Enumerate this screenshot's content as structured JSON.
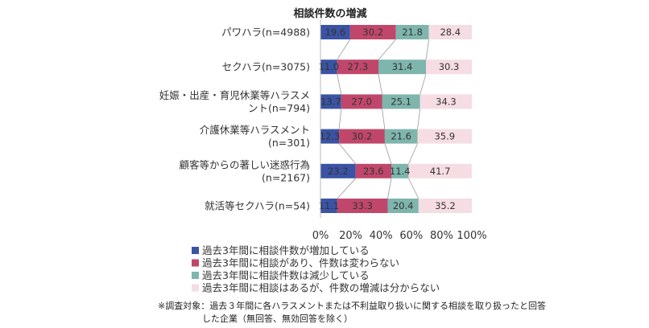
{
  "chart_data": {
    "type": "bar",
    "orientation": "horizontal-stacked-100",
    "title": "相談件数の増減",
    "categories": [
      [
        "パワハラ(n=4988)"
      ],
      [
        "セクハラ(n=3075)"
      ],
      [
        "妊娠・出産・育児休業等ハラスメ",
        "ント(n=794)"
      ],
      [
        "介護休業等ハラスメント",
        "(n=301)"
      ],
      [
        "顧客等からの著しい迷惑行為",
        "(n=2167)"
      ],
      [
        "就活等セクハラ(n=54)"
      ]
    ],
    "series": [
      {
        "name": "過去3年間に相談件数が増加している",
        "color": "#3a53a4",
        "values": [
          19.6,
          11.0,
          13.7,
          12.3,
          23.2,
          11.1
        ]
      },
      {
        "name": "過去3年間に相談があり、件数は変わらない",
        "color": "#c0476b",
        "values": [
          30.2,
          27.3,
          27.0,
          30.2,
          23.6,
          33.3
        ]
      },
      {
        "name": "過去3年間に相談件数は減少している",
        "color": "#7eb5ad",
        "values": [
          21.8,
          31.4,
          25.1,
          21.6,
          11.4,
          20.4
        ]
      },
      {
        "name": "過去3年間に相談はあるが、件数の増減は分からない",
        "color": "#f6dde3",
        "values": [
          28.4,
          30.3,
          34.3,
          35.9,
          41.7,
          35.2
        ]
      }
    ],
    "value_labels": [
      [
        "19.6",
        "30.2",
        "21.8",
        "28.4"
      ],
      [
        "11.0",
        "27.3",
        "31.4",
        "30.3"
      ],
      [
        "13.7",
        "27.0",
        "25.1",
        "34.3"
      ],
      [
        "12.3",
        "30.2",
        "21.6",
        "35.9"
      ],
      [
        "23.2",
        "23.6",
        "11.4",
        "41.7"
      ],
      [
        "11.1",
        "33.3",
        "20.4",
        "35.2"
      ]
    ],
    "xlim": [
      0,
      100
    ],
    "xticks": [
      "0%",
      "20%",
      "40%",
      "60%",
      "80%",
      "100%"
    ],
    "grid": false,
    "connector_lines": true,
    "legend_position": "bottom"
  },
  "note": {
    "lines": [
      "※調査対象：過去３年間に各ハラスメントまたは不利益取り扱いに関する相談を取り扱ったと回答",
      "した企業（無回答、無効回答を除く）"
    ]
  }
}
